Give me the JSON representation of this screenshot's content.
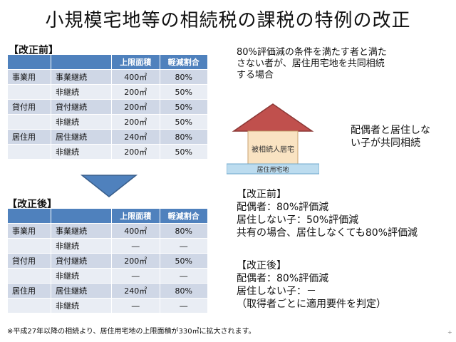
{
  "title": "小規模宅地等の相続税の課税の特例の改正",
  "before": {
    "label": "【改正前】",
    "headers": [
      "",
      "",
      "上限面積",
      "軽減割合"
    ],
    "rows": [
      {
        "category": "事業用",
        "item": "事業継続",
        "area": "400㎡",
        "rate": "80%"
      },
      {
        "category": "",
        "item": "非継続",
        "area": "200㎡",
        "rate": "50%"
      },
      {
        "category": "貸付用",
        "item": "貸付継続",
        "area": "200㎡",
        "rate": "50%"
      },
      {
        "category": "",
        "item": "非継続",
        "area": "200㎡",
        "rate": "50%"
      },
      {
        "category": "居住用",
        "item": "居住継続",
        "area": "240㎡",
        "rate": "80%"
      },
      {
        "category": "",
        "item": "非継続",
        "area": "200㎡",
        "rate": "50%"
      }
    ]
  },
  "after": {
    "label": "【改正後】",
    "headers": [
      "",
      "",
      "上限面積",
      "軽減割合"
    ],
    "rows": [
      {
        "category": "事業用",
        "item": "事業継続",
        "area": "400㎡",
        "rate": "80%"
      },
      {
        "category": "",
        "item": "非継続",
        "area": "―",
        "rate": "―"
      },
      {
        "category": "貸付用",
        "item": "貸付継続",
        "area": "200㎡",
        "rate": "50%"
      },
      {
        "category": "",
        "item": "非継続",
        "area": "―",
        "rate": "―"
      },
      {
        "category": "居住用",
        "item": "居住継続",
        "area": "240㎡",
        "rate": "80%"
      },
      {
        "category": "",
        "item": "非継続",
        "area": "―",
        "rate": "―"
      }
    ]
  },
  "scenario": {
    "lines": [
      "80%評価減の条件を満たす者と満た",
      "さない者が、居住用宅地を共同相続",
      "する場合"
    ]
  },
  "house": {
    "building_label": "被相続人居宅",
    "land_label": "居住用宅地"
  },
  "heirs": {
    "lines": [
      "配偶者と居住しな",
      "い子が共同相続"
    ]
  },
  "before_result": {
    "heading": "【改正前】",
    "lines": [
      "配偶者：80%評価減",
      "居住しない子：50%評価減",
      "共有の場合、居住しなくても80%評価減"
    ]
  },
  "after_result": {
    "heading": "【改正後】",
    "lines": [
      "配偶者：80%評価減",
      "居住しない子：－",
      "（取得者ごとに適用要件を判定）"
    ]
  },
  "footnote": "※平成27年以降の相続より、居住用宅地の上限面積が330㎡に拡大されます。",
  "colors": {
    "header": "#4f81bd",
    "row_dark": "#cfd7e6",
    "row_light": "#e9edf4",
    "roof": "#c0504d",
    "wall": "#f9e3c2",
    "land": "#bcdcef"
  }
}
